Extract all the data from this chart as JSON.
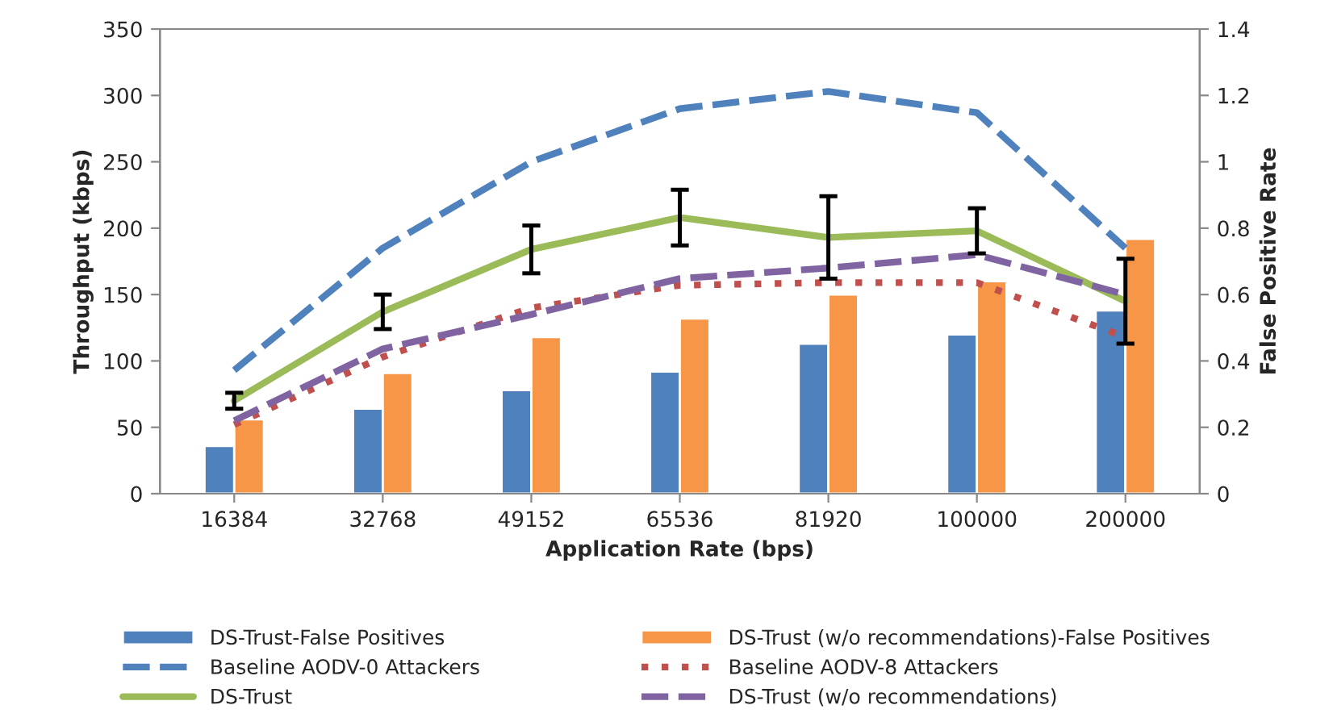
{
  "chart_data": {
    "type": "bar",
    "xlabel": "Application Rate (bps)",
    "ylabel": "Throughput (kbps)",
    "y2label": "False Positive Rate",
    "categories": [
      "16384",
      "32768",
      "49152",
      "65536",
      "81920",
      "100000",
      "200000"
    ],
    "series": [
      {
        "name": "DS-Trust-False Positives",
        "axis": "y2",
        "color": "#4f81bd",
        "values": [
          0.144,
          0.256,
          0.312,
          0.368,
          0.452,
          0.48,
          0.552
        ]
      },
      {
        "name": "DS-Trust (w/o recommendations)-False Positives",
        "axis": "y2",
        "color": "#f79646",
        "values": [
          0.224,
          0.364,
          0.472,
          0.528,
          0.6,
          0.64,
          0.768
        ]
      },
      {
        "name": "Baseline AODV-0 Attackers",
        "type": "line",
        "line_style": "dashed",
        "color": "#4f81bd",
        "values": [
          93,
          185,
          250,
          290,
          303,
          287,
          185
        ]
      },
      {
        "name": "Baseline AODV-8 Attackers",
        "type": "line",
        "line_style": "dotted",
        "color": "#c0504d",
        "values": [
          52,
          103,
          140,
          157,
          159,
          159,
          118
        ]
      },
      {
        "name": "DS-Trust",
        "type": "line",
        "line_style": "solid",
        "color": "#9bbb59",
        "values": [
          70,
          137,
          184,
          208,
          193,
          198,
          145
        ],
        "errors": [
          6,
          13,
          18,
          21,
          31,
          17,
          32
        ]
      },
      {
        "name": "DS-Trust (w/o recommendations)",
        "type": "line",
        "line_style": "dashed",
        "color": "#8064a2",
        "values": [
          55,
          109,
          135,
          162,
          170,
          180,
          150
        ]
      }
    ],
    "ylim": [
      0,
      350
    ],
    "yticks": [
      0,
      50,
      100,
      150,
      200,
      250,
      300,
      350
    ],
    "y2lim": [
      0,
      1.4
    ],
    "y2ticks": [
      0,
      0.2,
      0.4,
      0.6,
      0.8,
      1,
      1.2,
      1.4
    ],
    "grid": false,
    "legend": "bottom"
  }
}
